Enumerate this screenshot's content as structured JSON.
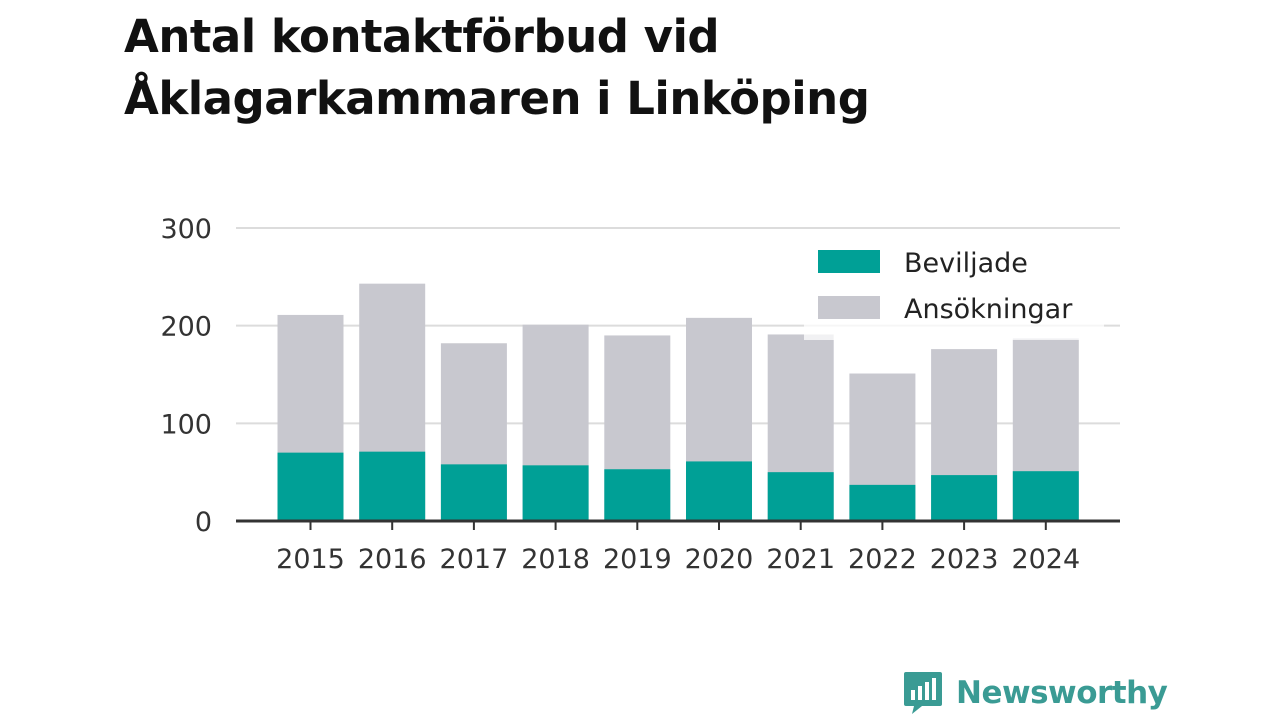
{
  "chart_data": {
    "type": "bar",
    "stacked": false,
    "title": "Antal kontaktförbud vid Åklagarkammaren i Linköping",
    "title_lines": [
      "Antal kontaktförbud vid",
      "Åklagarkammaren i Linköping"
    ],
    "categories": [
      "2015",
      "2016",
      "2017",
      "2018",
      "2019",
      "2020",
      "2021",
      "2022",
      "2023",
      "2024"
    ],
    "series": [
      {
        "name": "Ansökningar",
        "color": "#c8c8cf",
        "values": [
          211,
          243,
          182,
          201,
          190,
          208,
          191,
          151,
          176,
          187
        ]
      },
      {
        "name": "Beviljade",
        "color": "#00a096",
        "values": [
          70,
          71,
          58,
          57,
          53,
          61,
          50,
          37,
          47,
          51
        ]
      }
    ],
    "legend": {
      "placement": "top-right",
      "items": [
        "Beviljade",
        "Ansökningar"
      ]
    },
    "y_ticks": [
      "0",
      "100",
      "200",
      "300"
    ],
    "ylim": [
      0,
      300
    ],
    "grid": true,
    "xlabel": "",
    "ylabel": ""
  },
  "logo": {
    "text": "Newsworthy",
    "icon": "newsworthy-logo-icon",
    "color": "#3a9b94"
  }
}
